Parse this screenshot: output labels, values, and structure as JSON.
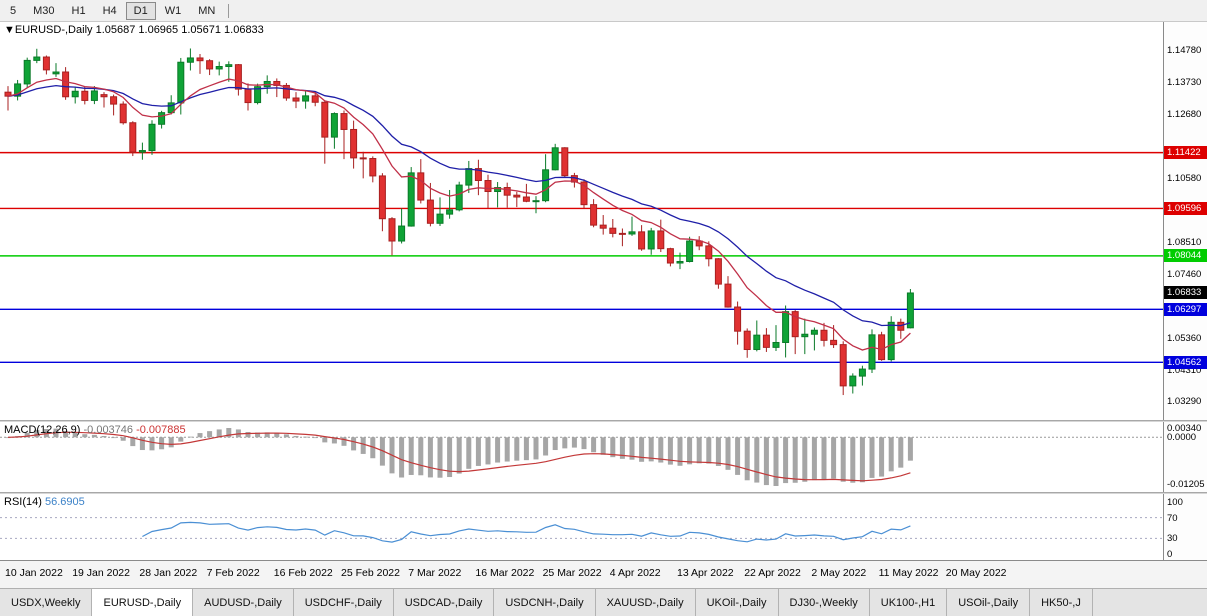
{
  "toolbar": {
    "timeframes": [
      "5",
      "M30",
      "H1",
      "H4",
      "D1",
      "W1",
      "MN"
    ],
    "active": "D1"
  },
  "price_pane": {
    "marker": "▼",
    "title": "EURUSD-,Daily",
    "ohlc_text": "1.05687 1.06965 1.05671 1.06833"
  },
  "chart_data": {
    "type": "candlestick",
    "symbol": "EURUSD-",
    "timeframe": "Daily",
    "open": "1.05687",
    "high": "1.06965",
    "low": "1.05671",
    "close": "1.06833",
    "price_range": {
      "top": 1.155,
      "bottom": 1.0287
    },
    "y_axis_labels": [
      "1.14780",
      "1.13730",
      "1.12680",
      "1.10580",
      "1.08510",
      "1.07460",
      "1.05360",
      "1.04310",
      "1.03290"
    ],
    "levels": [
      {
        "price": 1.11422,
        "label": "1.11422",
        "color": "#dd0000"
      },
      {
        "price": 1.09596,
        "label": "1.09596",
        "color": "#dd0000"
      },
      {
        "price": 1.08044,
        "label": "1.08044",
        "color": "#00cc00"
      },
      {
        "price": 1.06297,
        "label": "1.06297",
        "color": "#0000dd"
      },
      {
        "price": 1.04562,
        "label": "1.04562",
        "color": "#0000dd"
      }
    ],
    "current_price": {
      "price": 1.06833,
      "label": "1.06833",
      "color": "#000000"
    },
    "ma_fast_period": 10,
    "ma_slow_period": 21,
    "colors": {
      "up_fill": "#0fa336",
      "up_stroke": "#0a7a28",
      "down_fill": "#e03131",
      "down_stroke": "#a82020",
      "ma_fast": "#c03048",
      "ma_slow": "#1f1fa8"
    },
    "candles": [
      [
        1.134,
        1.136,
        1.128,
        1.1327
      ],
      [
        1.1327,
        1.138,
        1.1313,
        1.1367
      ],
      [
        1.1367,
        1.1453,
        1.1355,
        1.1444
      ],
      [
        1.1444,
        1.1482,
        1.1435,
        1.1455
      ],
      [
        1.1455,
        1.146,
        1.1398,
        1.1413
      ],
      [
        1.14,
        1.1435,
        1.139,
        1.1406
      ],
      [
        1.1406,
        1.1422,
        1.1315,
        1.1325
      ],
      [
        1.1325,
        1.1358,
        1.1303,
        1.1343
      ],
      [
        1.1343,
        1.1357,
        1.13,
        1.1313
      ],
      [
        1.1313,
        1.136,
        1.1301,
        1.1344
      ],
      [
        1.1332,
        1.134,
        1.129,
        1.1325
      ],
      [
        1.1325,
        1.1332,
        1.1264,
        1.1301
      ],
      [
        1.1301,
        1.131,
        1.1234,
        1.124
      ],
      [
        1.124,
        1.1245,
        1.1131,
        1.1144
      ],
      [
        1.1144,
        1.1175,
        1.1119,
        1.1149
      ],
      [
        1.1149,
        1.1248,
        1.1135,
        1.1235
      ],
      [
        1.1235,
        1.1279,
        1.1221,
        1.1273
      ],
      [
        1.1273,
        1.133,
        1.1267,
        1.1305
      ],
      [
        1.1305,
        1.1452,
        1.1267,
        1.1438
      ],
      [
        1.1438,
        1.1483,
        1.1411,
        1.1452
      ],
      [
        1.1452,
        1.1465,
        1.14,
        1.1443
      ],
      [
        1.1443,
        1.1448,
        1.1396,
        1.1416
      ],
      [
        1.1416,
        1.144,
        1.1395,
        1.1424
      ],
      [
        1.1424,
        1.1441,
        1.1374,
        1.143
      ],
      [
        1.143,
        1.1432,
        1.1329,
        1.135
      ],
      [
        1.135,
        1.1369,
        1.128,
        1.1306
      ],
      [
        1.1306,
        1.1368,
        1.13,
        1.1358
      ],
      [
        1.1358,
        1.1395,
        1.1335,
        1.1375
      ],
      [
        1.1375,
        1.1385,
        1.1324,
        1.1362
      ],
      [
        1.1362,
        1.137,
        1.1312,
        1.1321
      ],
      [
        1.1321,
        1.134,
        1.1288,
        1.1311
      ],
      [
        1.1311,
        1.1345,
        1.1286,
        1.1328
      ],
      [
        1.1328,
        1.1342,
        1.1294,
        1.1307
      ],
      [
        1.1307,
        1.131,
        1.1106,
        1.1193
      ],
      [
        1.1193,
        1.1274,
        1.1155,
        1.127
      ],
      [
        1.127,
        1.128,
        1.1121,
        1.1218
      ],
      [
        1.1218,
        1.1247,
        1.109,
        1.1125
      ],
      [
        1.1125,
        1.1145,
        1.1058,
        1.1123
      ],
      [
        1.1123,
        1.113,
        1.1045,
        1.1066
      ],
      [
        1.1066,
        1.1075,
        1.0885,
        1.0926
      ],
      [
        1.0926,
        1.0931,
        1.0806,
        1.0853
      ],
      [
        1.0853,
        1.096,
        1.0845,
        1.0902
      ],
      [
        1.0902,
        1.1095,
        1.09,
        1.1076
      ],
      [
        1.1076,
        1.1121,
        1.0976,
        1.0987
      ],
      [
        1.0987,
        1.1043,
        1.0901,
        1.0911
      ],
      [
        1.0911,
        1.0996,
        1.0902,
        1.0941
      ],
      [
        1.0941,
        1.102,
        1.0926,
        1.0955
      ],
      [
        1.0955,
        1.1047,
        1.095,
        1.1036
      ],
      [
        1.1036,
        1.1115,
        1.101,
        1.109
      ],
      [
        1.109,
        1.1119,
        1.1003,
        1.1051
      ],
      [
        1.1051,
        1.107,
        1.0961,
        1.1015
      ],
      [
        1.1015,
        1.1046,
        1.0963,
        1.1028
      ],
      [
        1.1028,
        1.1044,
        1.0962,
        1.1003
      ],
      [
        1.1003,
        1.1014,
        1.0964,
        1.0997
      ],
      [
        1.0997,
        1.104,
        1.098,
        1.0983
      ],
      [
        1.0983,
        1.1,
        1.0944,
        1.0985
      ],
      [
        1.0985,
        1.1137,
        1.098,
        1.1086
      ],
      [
        1.1086,
        1.1171,
        1.1084,
        1.1158
      ],
      [
        1.1158,
        1.116,
        1.1061,
        1.1067
      ],
      [
        1.1067,
        1.1076,
        1.1028,
        1.1046
      ],
      [
        1.1046,
        1.1055,
        1.096,
        1.0972
      ],
      [
        1.0972,
        1.099,
        1.0898,
        1.0905
      ],
      [
        1.0905,
        1.0938,
        1.0874,
        1.0895
      ],
      [
        1.0895,
        1.0925,
        1.0865,
        1.0878
      ],
      [
        1.0878,
        1.0894,
        1.0836,
        1.0876
      ],
      [
        1.0876,
        1.0933,
        1.087,
        1.0883
      ],
      [
        1.0883,
        1.0905,
        1.0821,
        1.0827
      ],
      [
        1.0827,
        1.0896,
        1.0808,
        1.0886
      ],
      [
        1.0886,
        1.0923,
        1.0817,
        1.0828
      ],
      [
        1.0828,
        1.0831,
        1.077,
        1.0781
      ],
      [
        1.0781,
        1.0815,
        1.0761,
        1.0786
      ],
      [
        1.0786,
        1.0867,
        1.0783,
        1.0853
      ],
      [
        1.0853,
        1.0869,
        1.0823,
        1.0837
      ],
      [
        1.0837,
        1.0852,
        1.077,
        1.0795
      ],
      [
        1.0795,
        1.0797,
        1.0697,
        1.0712
      ],
      [
        1.0712,
        1.0738,
        1.0635,
        1.0637
      ],
      [
        1.0637,
        1.0655,
        1.0514,
        1.0558
      ],
      [
        1.0558,
        1.0567,
        1.0471,
        1.0498
      ],
      [
        1.0498,
        1.0593,
        1.0492,
        1.0545
      ],
      [
        1.0545,
        1.0568,
        1.049,
        1.0505
      ],
      [
        1.0505,
        1.0578,
        1.0493,
        1.0521
      ],
      [
        1.0521,
        1.0642,
        1.0472,
        1.0622
      ],
      [
        1.0622,
        1.0627,
        1.0483,
        1.054
      ],
      [
        1.054,
        1.0599,
        1.0483,
        1.0548
      ],
      [
        1.0548,
        1.057,
        1.0495,
        1.0561
      ],
      [
        1.0561,
        1.0585,
        1.0508,
        1.0528
      ],
      [
        1.0528,
        1.0578,
        1.0503,
        1.0514
      ],
      [
        1.0514,
        1.0525,
        1.0349,
        1.0379
      ],
      [
        1.0379,
        1.042,
        1.0354,
        1.0411
      ],
      [
        1.0411,
        1.0445,
        1.038,
        1.0434
      ],
      [
        1.0434,
        1.0564,
        1.0421,
        1.0546
      ],
      [
        1.0546,
        1.0556,
        1.0461,
        1.0465
      ],
      [
        1.0465,
        1.0607,
        1.0459,
        1.0587
      ],
      [
        1.0587,
        1.0599,
        1.0533,
        1.0561
      ],
      [
        1.0569,
        1.0696,
        1.0567,
        1.0683
      ]
    ],
    "x_labels": [
      "10 Jan 2022",
      "19 Jan 2022",
      "28 Jan 2022",
      "7 Feb 2022",
      "16 Feb 2022",
      "25 Feb 2022",
      "7 Mar 2022",
      "16 Mar 2022",
      "25 Mar 2022",
      "4 Apr 2022",
      "13 Apr 2022",
      "22 Apr 2022",
      "2 May 2022",
      "11 May 2022",
      "20 May 2022"
    ],
    "macd": {
      "label": "MACD(12,26,9)",
      "value_main": "-0.003746",
      "value_signal": "-0.007885",
      "axis_labels": [
        "0.00340",
        "0.0000",
        "-0.01205"
      ],
      "histogram_color": "#a6a6a6",
      "signal_color": "#c33838"
    },
    "rsi": {
      "label": "RSI(14)",
      "value": "56.6905",
      "axis_labels": [
        "100",
        "70",
        "30",
        "0"
      ],
      "guide_levels": [
        70,
        30
      ],
      "line_color": "#4a8fd4"
    }
  },
  "tabs": {
    "items": [
      "USDX,Weekly",
      "EURUSD-,Daily",
      "AUDUSD-,Daily",
      "USDCHF-,Daily",
      "USDCAD-,Daily",
      "USDCNH-,Daily",
      "XAUUSD-,Daily",
      "UKOil-,Daily",
      "DJ30-,Weekly",
      "UK100-,H1",
      "USOil-,Daily",
      "HK50-,J"
    ],
    "active_index": 1
  }
}
